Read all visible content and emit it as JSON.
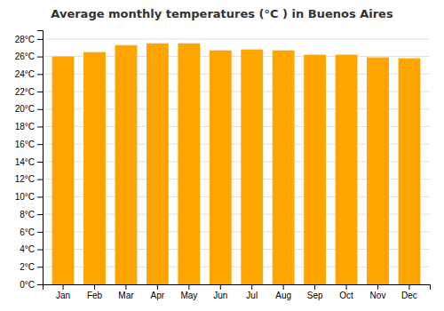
{
  "chart_data": {
    "type": "bar",
    "title": "Average monthly temperatures (°C ) in Buenos Aires",
    "categories": [
      "Jan",
      "Feb",
      "Mar",
      "Apr",
      "May",
      "Jun",
      "Jul",
      "Aug",
      "Sep",
      "Oct",
      "Nov",
      "Dec"
    ],
    "values": [
      26.0,
      26.5,
      27.3,
      27.5,
      27.5,
      26.7,
      26.8,
      26.7,
      26.2,
      26.2,
      25.9,
      25.8
    ],
    "color": "#FFA500",
    "ylim": [
      0,
      29
    ],
    "yticks": [
      {
        "value": 0,
        "label": "0°C"
      },
      {
        "value": 2,
        "label": "2°C"
      },
      {
        "value": 4,
        "label": "4°C"
      },
      {
        "value": 6,
        "label": "6°C"
      },
      {
        "value": 8,
        "label": "8°C"
      },
      {
        "value": 10,
        "label": "10°C"
      },
      {
        "value": 12,
        "label": "12°C"
      },
      {
        "value": 14,
        "label": "14°C"
      },
      {
        "value": 16,
        "label": "16°C"
      },
      {
        "value": 18,
        "label": "18°C"
      },
      {
        "value": 20,
        "label": "20°C"
      },
      {
        "value": 22,
        "label": "22°C"
      },
      {
        "value": 24,
        "label": "24°C"
      },
      {
        "value": 26,
        "label": "26°C"
      },
      {
        "value": 28,
        "label": "28°C"
      }
    ],
    "grid": true
  }
}
